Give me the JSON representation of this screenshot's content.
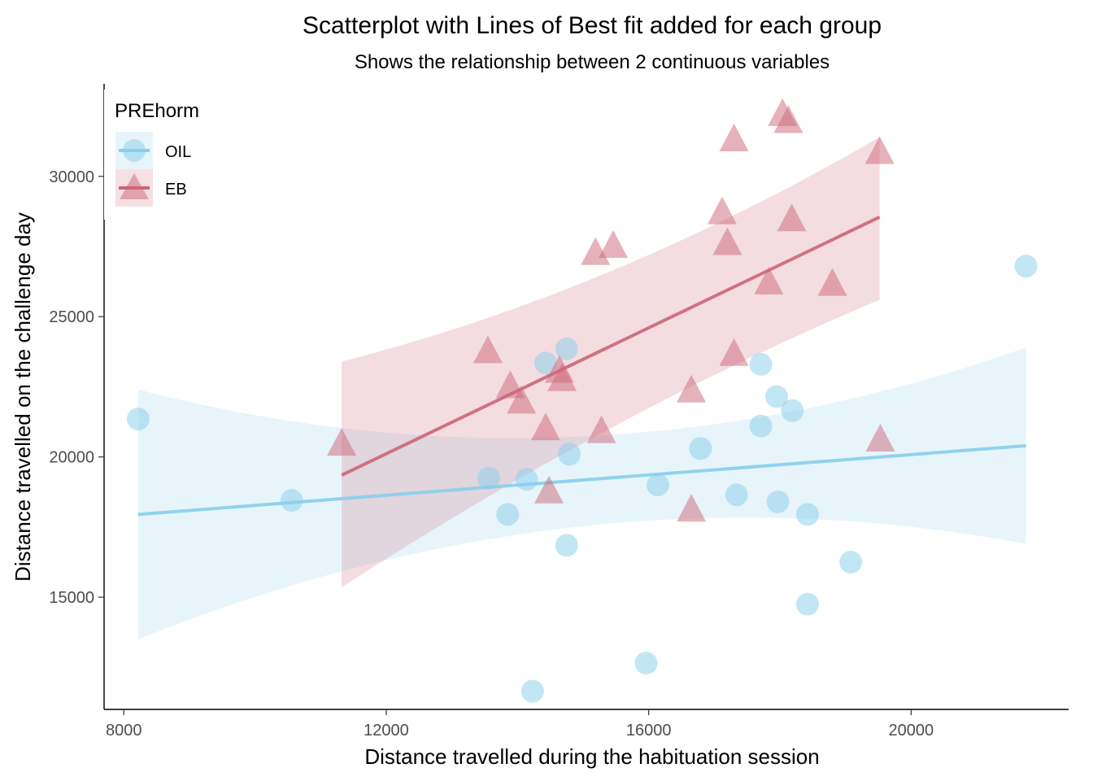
{
  "chart_data": {
    "type": "scatter",
    "title": "Scatterplot with Lines of Best fit added for each group",
    "subtitle": "Shows the relationship between 2 continuous variables",
    "xlabel": "Distance travelled during the habituation session",
    "ylabel": "Distance travelled on the challenge day",
    "xlim": [
      7700,
      22400
    ],
    "ylim": [
      11000,
      33300
    ],
    "xticks": [
      8000,
      12000,
      16000,
      20000
    ],
    "xtick_labels": [
      "8000",
      "12000",
      "16000",
      "20000"
    ],
    "yticks": [
      15000,
      20000,
      25000,
      30000
    ],
    "ytick_labels": [
      "15000",
      "20000",
      "25000",
      "30000"
    ],
    "grid": false,
    "legend": {
      "title": "PREhorm",
      "placement": "top-left",
      "entries": [
        "OIL",
        "EB"
      ]
    },
    "series": [
      {
        "name": "OIL",
        "marker": "circle",
        "color": "#87ceeb",
        "fit_color": "#87ceeb",
        "band_color": "#87ceeb",
        "points": [
          [
            8220,
            21350
          ],
          [
            10560,
            18450
          ],
          [
            13560,
            19250
          ],
          [
            13850,
            17950
          ],
          [
            14140,
            19200
          ],
          [
            14230,
            11650
          ],
          [
            14430,
            23350
          ],
          [
            14750,
            23850
          ],
          [
            14750,
            16850
          ],
          [
            14790,
            20100
          ],
          [
            15960,
            12650
          ],
          [
            16140,
            19000
          ],
          [
            16790,
            20300
          ],
          [
            17340,
            18650
          ],
          [
            17710,
            23300
          ],
          [
            17710,
            21100
          ],
          [
            17950,
            22150
          ],
          [
            17970,
            18400
          ],
          [
            18190,
            21650
          ],
          [
            18420,
            17950
          ],
          [
            18420,
            14750
          ],
          [
            19080,
            16250
          ],
          [
            21750,
            26800
          ]
        ],
        "fit": {
          "x": [
            8220,
            21750
          ],
          "y": [
            17950,
            20400
          ]
        },
        "ci_band": {
          "x": [
            8220,
            14700,
            21750
          ],
          "lower": [
            13500,
            17450,
            16900
          ],
          "upper": [
            22400,
            20700,
            23900
          ]
        }
      },
      {
        "name": "EB",
        "marker": "triangle",
        "color": "#cc6677",
        "fit_color": "#cc6677",
        "band_color": "#cc6677",
        "points": [
          [
            11320,
            20450
          ],
          [
            13550,
            23750
          ],
          [
            13890,
            22500
          ],
          [
            14060,
            21950
          ],
          [
            14430,
            21000
          ],
          [
            14480,
            18750
          ],
          [
            14640,
            23050
          ],
          [
            14680,
            22750
          ],
          [
            15190,
            27250
          ],
          [
            15280,
            20900
          ],
          [
            15460,
            27500
          ],
          [
            16650,
            22350
          ],
          [
            16650,
            18100
          ],
          [
            17120,
            28700
          ],
          [
            17200,
            27600
          ],
          [
            17300,
            31300
          ],
          [
            17300,
            23650
          ],
          [
            17830,
            26200
          ],
          [
            18040,
            32200
          ],
          [
            18130,
            31950
          ],
          [
            18180,
            28450
          ],
          [
            18800,
            26150
          ],
          [
            19520,
            30850
          ],
          [
            19530,
            20600
          ]
        ],
        "fit": {
          "x": [
            11320,
            19520
          ],
          "y": [
            19350,
            28550
          ]
        },
        "ci_band": {
          "x": [
            11320,
            15400,
            19520
          ],
          "lower": [
            15350,
            21000,
            25600
          ],
          "upper": [
            23400,
            26600,
            31400
          ]
        }
      }
    ]
  }
}
